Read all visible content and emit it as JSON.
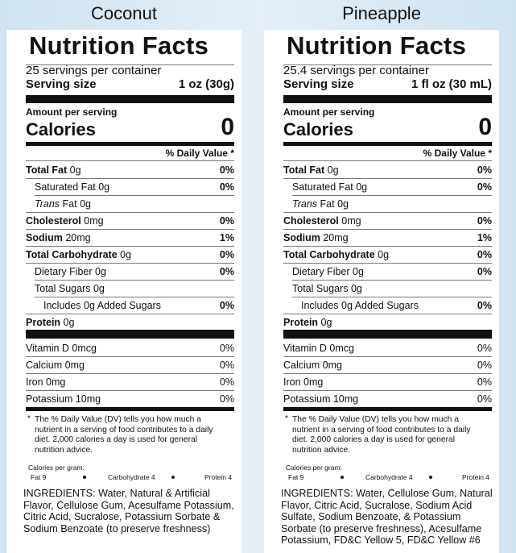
{
  "panels": [
    {
      "flavor": "Coconut",
      "heading": "Nutrition Facts",
      "servings": "25 servings per container",
      "serving_size_label": "Serving size",
      "serving_size": "1 oz (30g)",
      "amount_label": "Amount per serving",
      "calories_label": "Calories",
      "calories": "0",
      "dv_header": "% Daily Value *",
      "nutrients": [
        {
          "name": "Total Fat",
          "amount": "0g",
          "dv": "0%"
        },
        {
          "name": "Saturated Fat",
          "amount": "0g",
          "dv": "0%"
        },
        {
          "name_italic": "Trans",
          "name": "Fat",
          "amount": "0g"
        },
        {
          "name": "Cholesterol",
          "amount": "0mg",
          "dv": "0%"
        },
        {
          "name": "Sodium",
          "amount": "20mg",
          "dv": "1%"
        },
        {
          "name": "Total Carbohydrate",
          "amount": "0g",
          "dv": "0%"
        },
        {
          "name": "Dietary Fiber",
          "amount": "0g",
          "dv": "0%"
        },
        {
          "name": "Total Sugars",
          "amount": "0g"
        },
        {
          "name": "Includes 0g Added Sugars",
          "dv": "0%"
        },
        {
          "name": "Protein",
          "amount": "0g"
        }
      ],
      "vitamins": [
        {
          "name": "Vitamin D 0mcg",
          "dv": "0%"
        },
        {
          "name": "Calcium 0mg",
          "dv": "0%"
        },
        {
          "name": "Iron 0mg",
          "dv": "0%"
        },
        {
          "name": "Potassium 10mg",
          "dv": "0%"
        }
      ],
      "footnote_mark": "*",
      "footnote": "The % Daily Value (DV) tells you how much a nutrient in a serving of food contributes to a daily diet. 2,000 calories a day is used for general nutrition advice.",
      "cal_per_gram_label": "Calories per gram:",
      "cal_per_gram": [
        "Fat 9",
        "Carbohydrate 4",
        "Protein 4"
      ],
      "ingredients": "INGREDIENTS: Water, Natural & Artificial Flavor, Cellulose Gum, Acesulfame Potassium, Citric Acid, Sucralose, Potassium Sorbate & Sodium Benzoate (to preserve freshness)"
    },
    {
      "flavor": "Pineapple",
      "heading": "Nutrition Facts",
      "servings": "25.4 servings per container",
      "serving_size_label": "Serving size",
      "serving_size": "1 fl oz (30 mL)",
      "amount_label": "Amount per serving",
      "calories_label": "Calories",
      "calories": "0",
      "dv_header": "% Daily Value *",
      "nutrients": [
        {
          "name": "Total Fat",
          "amount": "0g",
          "dv": "0%"
        },
        {
          "name": "Saturated Fat",
          "amount": "0g",
          "dv": "0%"
        },
        {
          "name_italic": "Trans",
          "name": "Fat",
          "amount": "0g"
        },
        {
          "name": "Cholesterol",
          "amount": "0mg",
          "dv": "0%"
        },
        {
          "name": "Sodium",
          "amount": "20mg",
          "dv": "1%"
        },
        {
          "name": "Total Carbohydrate",
          "amount": "0g",
          "dv": "0%"
        },
        {
          "name": "Dietary Fiber",
          "amount": "0g",
          "dv": "0%"
        },
        {
          "name": "Total Sugars",
          "amount": "0g"
        },
        {
          "name": "Includes 0g Added Sugars",
          "dv": "0%"
        },
        {
          "name": "Protein",
          "amount": "0g"
        }
      ],
      "vitamins": [
        {
          "name": "Vitamin D 0mcg",
          "dv": "0%"
        },
        {
          "name": "Calcium 0mg",
          "dv": "0%"
        },
        {
          "name": "Iron 0mg",
          "dv": "0%"
        },
        {
          "name": "Potassium 10mg",
          "dv": "0%"
        }
      ],
      "footnote_mark": "*",
      "footnote": "The % Daily Value (DV) tells you how much a nutrient in a serving of food contributes to a daily diet. 2,000 calories a day is used for general nutrition advice.",
      "cal_per_gram_label": "Calories per gram:",
      "cal_per_gram": [
        "Fat 9",
        "Carbohydrate 4",
        "Protein 4"
      ],
      "ingredients": "INGREDIENTS: Water, Cellulose Gum, Natural Flavor, Citric Acid, Sucralose,  Sodium Acid Sulfate, Sodium Benzoate, & Potassium Sorbate (to preserve freshness), Acesulfame Potassium, FD&C Yellow 5, FD&C Yellow #6"
    }
  ]
}
